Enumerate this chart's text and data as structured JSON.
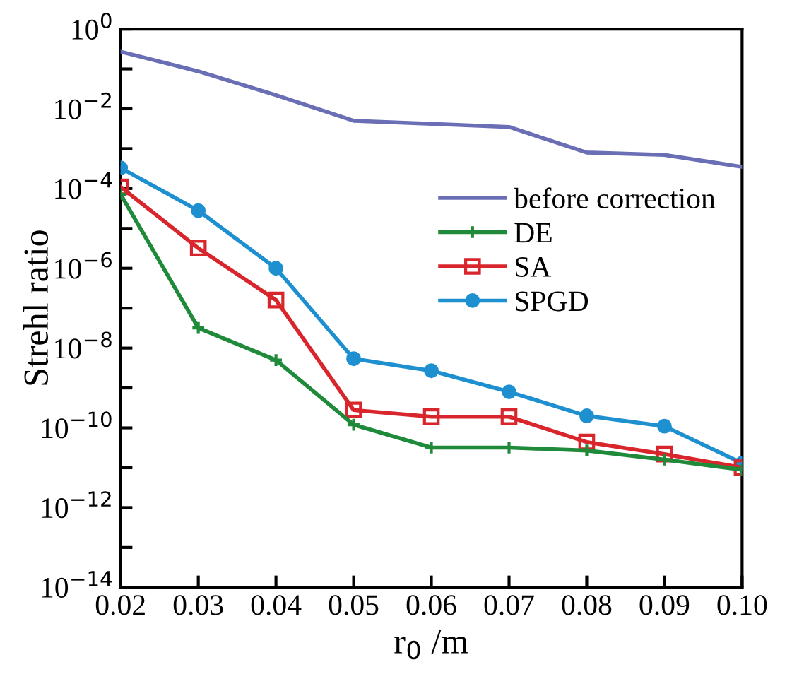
{
  "chart_data": {
    "type": "line",
    "xlabel": "r$_{0}$ /m",
    "ylabel": "Strehl ratio",
    "log": "y",
    "x": [
      0.02,
      0.03,
      0.04,
      0.05,
      0.06,
      0.07,
      0.08,
      0.09,
      0.1
    ],
    "xlim": [
      0.02,
      0.1
    ],
    "xticks": [
      0.02,
      0.03,
      0.04,
      0.05,
      0.06,
      0.07,
      0.08,
      0.09,
      {
        "value": 0.1,
        "label": "0.10"
      }
    ],
    "ylim": [
      1e-14,
      1
    ],
    "yticks": [
      {
        "value": 1,
        "label": "10$^{0}$"
      },
      {
        "value": 0.1,
        "label": null
      },
      {
        "value": 0.01,
        "label": "10$^{−2}$"
      },
      {
        "value": 0.001,
        "label": null
      },
      {
        "value": 0.0001,
        "label": "10$^{−4}$"
      },
      {
        "value": 1e-05,
        "label": null
      },
      {
        "value": 1e-06,
        "label": "10$^{−6}$"
      },
      {
        "value": 1e-07,
        "label": null
      },
      {
        "value": 1e-08,
        "label": "10$^{−8}$"
      },
      {
        "value": 1e-09,
        "label": null
      },
      {
        "value": 1e-10,
        "label": "10$^{−10}$"
      },
      {
        "value": 1e-11,
        "label": null
      },
      {
        "value": 1e-12,
        "label": "10$^{−12}$"
      },
      {
        "value": 1e-13,
        "label": null
      },
      {
        "value": 1e-14,
        "label": "10$^{−14}$"
      }
    ],
    "grid": false,
    "legend": "right",
    "line_style": "solid",
    "series": [
      {
        "name": "before correction",
        "color": "#6a6fb5",
        "marker": "none",
        "values": [
          0.27,
          0.087,
          0.022,
          0.005,
          0.0042,
          0.0035,
          0.0008,
          0.0007,
          0.00035
        ]
      },
      {
        "name": "DE",
        "color": "#1f8a3a",
        "marker": "cross",
        "values": [
          7.2e-05,
          3.2e-08,
          5e-09,
          1.2e-10,
          3.2e-11,
          3.2e-11,
          2.7e-11,
          1.6e-11,
          8.9e-12
        ]
      },
      {
        "name": "SA",
        "color": "#d8262c",
        "marker": "square",
        "values": [
          0.00011,
          3.2e-06,
          1.6e-07,
          2.8e-10,
          1.9e-10,
          1.9e-10,
          4.4e-11,
          2.2e-11,
          1e-11
        ]
      },
      {
        "name": "SPGD",
        "color": "#1e90d0",
        "marker": "circle",
        "values": [
          0.00033,
          2.8e-05,
          1e-06,
          5.4e-09,
          2.7e-09,
          8e-10,
          2e-10,
          1.1e-10,
          1.3e-11
        ]
      }
    ]
  }
}
